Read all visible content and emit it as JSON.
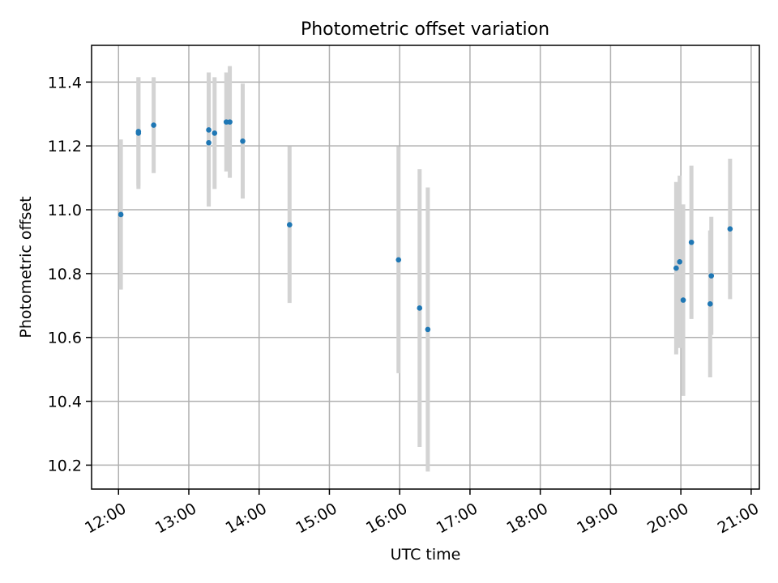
{
  "chart_data": {
    "type": "scatter",
    "title": "Photometric offset variation",
    "xlabel": "UTC time",
    "ylabel": "Photometric offset",
    "xlim": [
      "11:37",
      "21:07"
    ],
    "ylim": [
      10.125,
      11.515
    ],
    "grid": true,
    "colors": {
      "points": "#1f77b4",
      "errorbars": "#d3d3d3",
      "grid": "#b0b0b0"
    },
    "x_ticks": [
      "12:00",
      "13:00",
      "14:00",
      "15:00",
      "16:00",
      "17:00",
      "18:00",
      "19:00",
      "20:00",
      "21:00"
    ],
    "y_ticks": [
      "10.2",
      "10.4",
      "10.6",
      "10.8",
      "11.0",
      "11.2",
      "11.4"
    ],
    "points": [
      {
        "x": "12:02",
        "y": 10.985,
        "err": 0.235
      },
      {
        "x": "12:17",
        "y": 11.245,
        "err": 0.17
      },
      {
        "x": "12:17",
        "y": 11.24,
        "err": 0.175
      },
      {
        "x": "12:30",
        "y": 11.265,
        "err": 0.15
      },
      {
        "x": "13:17",
        "y": 11.21,
        "err": 0.2
      },
      {
        "x": "13:17",
        "y": 11.25,
        "err": 0.18
      },
      {
        "x": "13:22",
        "y": 11.24,
        "err": 0.175
      },
      {
        "x": "13:32",
        "y": 11.275,
        "err": 0.155
      },
      {
        "x": "13:35",
        "y": 11.275,
        "err": 0.175
      },
      {
        "x": "13:46",
        "y": 11.215,
        "err": 0.18
      },
      {
        "x": "14:26",
        "y": 10.953,
        "err": 0.245
      },
      {
        "x": "15:59",
        "y": 10.843,
        "err": 0.355
      },
      {
        "x": "16:17",
        "y": 10.692,
        "err": 0.435
      },
      {
        "x": "16:24",
        "y": 10.625,
        "err": 0.445
      },
      {
        "x": "19:56",
        "y": 10.817,
        "err": 0.27
      },
      {
        "x": "19:59",
        "y": 10.837,
        "err": 0.27
      },
      {
        "x": "20:02",
        "y": 10.717,
        "err": 0.3
      },
      {
        "x": "20:09",
        "y": 10.898,
        "err": 0.24
      },
      {
        "x": "20:25",
        "y": 10.705,
        "err": 0.23
      },
      {
        "x": "20:26",
        "y": 10.793,
        "err": 0.185
      },
      {
        "x": "20:42",
        "y": 10.94,
        "err": 0.22
      }
    ]
  }
}
